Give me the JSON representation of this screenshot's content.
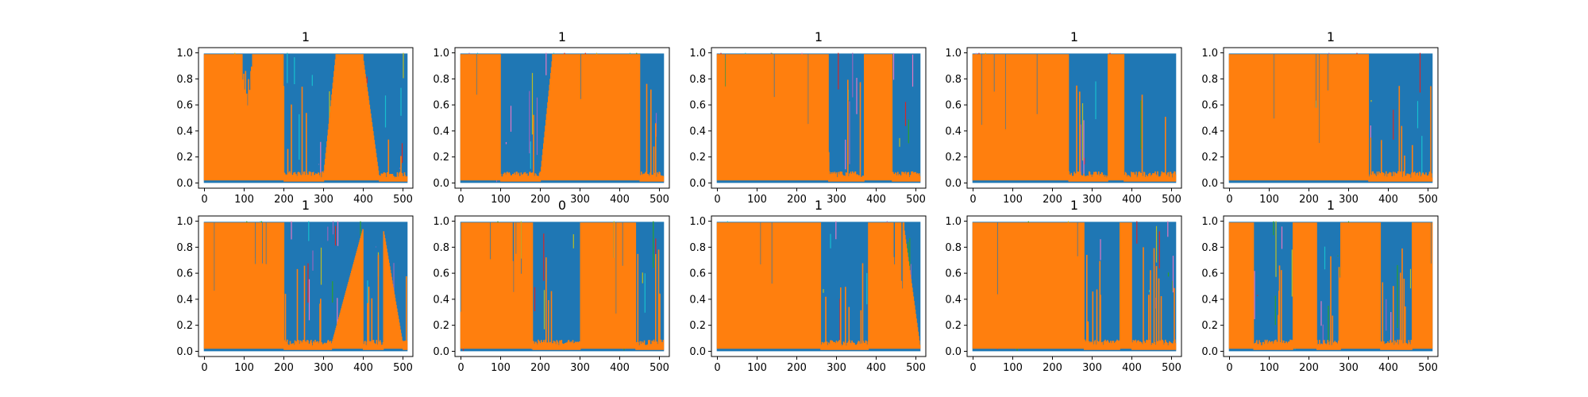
{
  "chart_data": [
    {
      "type": "line",
      "title": "1",
      "xticks": [
        "0",
        "100",
        "200",
        "300",
        "400",
        "500"
      ],
      "yticks": [
        "0.0",
        "0.2",
        "0.4",
        "0.6",
        "0.8",
        "1.0"
      ],
      "xlim": [
        -15,
        525
      ],
      "ylim": [
        -0.04,
        1.04
      ],
      "series": [
        {
          "color": "#1f77b4"
        },
        {
          "color": "#ff7f0e"
        }
      ],
      "segments": [
        {
          "x": [
            0,
            95
          ],
          "v": "high"
        },
        {
          "x": [
            95,
            120
          ],
          "v": "mid"
        },
        {
          "x": [
            120,
            200
          ],
          "v": "high"
        },
        {
          "x": [
            200,
            300
          ],
          "v": "low"
        },
        {
          "x": [
            300,
            330
          ],
          "v": "rise"
        },
        {
          "x": [
            330,
            400
          ],
          "v": "high"
        },
        {
          "x": [
            400,
            440
          ],
          "v": "fall"
        },
        {
          "x": [
            440,
            510
          ],
          "v": "low"
        }
      ]
    },
    {
      "type": "line",
      "title": "1",
      "xticks": [
        "0",
        "100",
        "200",
        "300",
        "400",
        "500"
      ],
      "yticks": [
        "0.0",
        "0.2",
        "0.4",
        "0.6",
        "0.8",
        "1.0"
      ],
      "xlim": [
        -15,
        525
      ],
      "ylim": [
        -0.04,
        1.04
      ],
      "series": [
        {
          "color": "#1f77b4"
        },
        {
          "color": "#ff7f0e"
        }
      ],
      "segments": [
        {
          "x": [
            0,
            100
          ],
          "v": "high"
        },
        {
          "x": [
            100,
            200
          ],
          "v": "low"
        },
        {
          "x": [
            200,
            230
          ],
          "v": "rise"
        },
        {
          "x": [
            230,
            450
          ],
          "v": "high"
        },
        {
          "x": [
            450,
            510
          ],
          "v": "low"
        }
      ]
    },
    {
      "type": "line",
      "title": "1",
      "xticks": [
        "0",
        "100",
        "200",
        "300",
        "400",
        "500"
      ],
      "yticks": [
        "0.0",
        "0.2",
        "0.4",
        "0.6",
        "0.8",
        "1.0"
      ],
      "xlim": [
        -15,
        525
      ],
      "ylim": [
        -0.04,
        1.04
      ],
      "series": [
        {
          "color": "#1f77b4"
        },
        {
          "color": "#ff7f0e"
        }
      ],
      "segments": [
        {
          "x": [
            0,
            280
          ],
          "v": "high"
        },
        {
          "x": [
            280,
            370
          ],
          "v": "low"
        },
        {
          "x": [
            370,
            440
          ],
          "v": "high"
        },
        {
          "x": [
            440,
            510
          ],
          "v": "low"
        }
      ]
    },
    {
      "type": "line",
      "title": "1",
      "xticks": [
        "0",
        "100",
        "200",
        "300",
        "400",
        "500"
      ],
      "yticks": [
        "0.0",
        "0.2",
        "0.4",
        "0.6",
        "0.8",
        "1.0"
      ],
      "xlim": [
        -15,
        525
      ],
      "ylim": [
        -0.04,
        1.04
      ],
      "series": [
        {
          "color": "#1f77b4"
        },
        {
          "color": "#ff7f0e"
        }
      ],
      "segments": [
        {
          "x": [
            0,
            240
          ],
          "v": "high"
        },
        {
          "x": [
            240,
            340
          ],
          "v": "low"
        },
        {
          "x": [
            340,
            380
          ],
          "v": "high"
        },
        {
          "x": [
            380,
            510
          ],
          "v": "low"
        }
      ]
    },
    {
      "type": "line",
      "title": "1",
      "xticks": [
        "0",
        "100",
        "200",
        "300",
        "400",
        "500"
      ],
      "yticks": [
        "0.0",
        "0.2",
        "0.4",
        "0.6",
        "0.8",
        "1.0"
      ],
      "xlim": [
        -15,
        525
      ],
      "ylim": [
        -0.04,
        1.04
      ],
      "series": [
        {
          "color": "#1f77b4"
        },
        {
          "color": "#ff7f0e"
        }
      ],
      "segments": [
        {
          "x": [
            0,
            350
          ],
          "v": "high"
        },
        {
          "x": [
            350,
            510
          ],
          "v": "low"
        }
      ]
    },
    {
      "type": "line",
      "title": "1",
      "xticks": [
        "0",
        "100",
        "200",
        "300",
        "400",
        "500"
      ],
      "yticks": [
        "0.0",
        "0.2",
        "0.4",
        "0.6",
        "0.8",
        "1.0"
      ],
      "xlim": [
        -15,
        525
      ],
      "ylim": [
        -0.04,
        1.04
      ],
      "series": [
        {
          "color": "#1f77b4"
        },
        {
          "color": "#ff7f0e"
        }
      ],
      "segments": [
        {
          "x": [
            0,
            200
          ],
          "v": "high"
        },
        {
          "x": [
            200,
            320
          ],
          "v": "low"
        },
        {
          "x": [
            320,
            400
          ],
          "v": "rise"
        },
        {
          "x": [
            400,
            450
          ],
          "v": "low"
        },
        {
          "x": [
            450,
            500
          ],
          "v": "fall"
        },
        {
          "x": [
            500,
            510
          ],
          "v": "low"
        }
      ]
    },
    {
      "type": "line",
      "title": "0",
      "xticks": [
        "0",
        "100",
        "200",
        "300",
        "400",
        "500"
      ],
      "yticks": [
        "0.0",
        "0.2",
        "0.4",
        "0.6",
        "0.8",
        "1.0"
      ],
      "xlim": [
        -15,
        525
      ],
      "ylim": [
        -0.04,
        1.04
      ],
      "series": [
        {
          "color": "#1f77b4"
        },
        {
          "color": "#ff7f0e"
        }
      ],
      "segments": [
        {
          "x": [
            0,
            180
          ],
          "v": "high"
        },
        {
          "x": [
            180,
            300
          ],
          "v": "low"
        },
        {
          "x": [
            300,
            440
          ],
          "v": "high"
        },
        {
          "x": [
            440,
            510
          ],
          "v": "low"
        }
      ]
    },
    {
      "type": "line",
      "title": "1",
      "xticks": [
        "0",
        "100",
        "200",
        "300",
        "400",
        "500"
      ],
      "yticks": [
        "0.0",
        "0.2",
        "0.4",
        "0.6",
        "0.8",
        "1.0"
      ],
      "xlim": [
        -15,
        525
      ],
      "ylim": [
        -0.04,
        1.04
      ],
      "series": [
        {
          "color": "#1f77b4"
        },
        {
          "color": "#ff7f0e"
        }
      ],
      "segments": [
        {
          "x": [
            0,
            260
          ],
          "v": "high"
        },
        {
          "x": [
            260,
            380
          ],
          "v": "low"
        },
        {
          "x": [
            380,
            470
          ],
          "v": "high"
        },
        {
          "x": [
            470,
            510
          ],
          "v": "fall"
        }
      ]
    },
    {
      "type": "line",
      "title": "1",
      "xticks": [
        "0",
        "100",
        "200",
        "300",
        "400",
        "500"
      ],
      "yticks": [
        "0.0",
        "0.2",
        "0.4",
        "0.6",
        "0.8",
        "1.0"
      ],
      "xlim": [
        -15,
        525
      ],
      "ylim": [
        -0.04,
        1.04
      ],
      "series": [
        {
          "color": "#1f77b4"
        },
        {
          "color": "#ff7f0e"
        }
      ],
      "segments": [
        {
          "x": [
            0,
            280
          ],
          "v": "high"
        },
        {
          "x": [
            280,
            370
          ],
          "v": "low"
        },
        {
          "x": [
            370,
            400
          ],
          "v": "high"
        },
        {
          "x": [
            400,
            510
          ],
          "v": "low"
        }
      ]
    },
    {
      "type": "line",
      "title": "1",
      "xticks": [
        "0",
        "100",
        "200",
        "300",
        "400",
        "500"
      ],
      "yticks": [
        "0.0",
        "0.2",
        "0.4",
        "0.6",
        "0.8",
        "1.0"
      ],
      "xlim": [
        -15,
        525
      ],
      "ylim": [
        -0.04,
        1.04
      ],
      "series": [
        {
          "color": "#1f77b4"
        },
        {
          "color": "#ff7f0e"
        }
      ],
      "segments": [
        {
          "x": [
            0,
            60
          ],
          "v": "high"
        },
        {
          "x": [
            60,
            160
          ],
          "v": "low"
        },
        {
          "x": [
            160,
            220
          ],
          "v": "high"
        },
        {
          "x": [
            220,
            280
          ],
          "v": "low"
        },
        {
          "x": [
            280,
            380
          ],
          "v": "high"
        },
        {
          "x": [
            380,
            460
          ],
          "v": "low"
        },
        {
          "x": [
            460,
            510
          ],
          "v": "high"
        }
      ]
    }
  ]
}
